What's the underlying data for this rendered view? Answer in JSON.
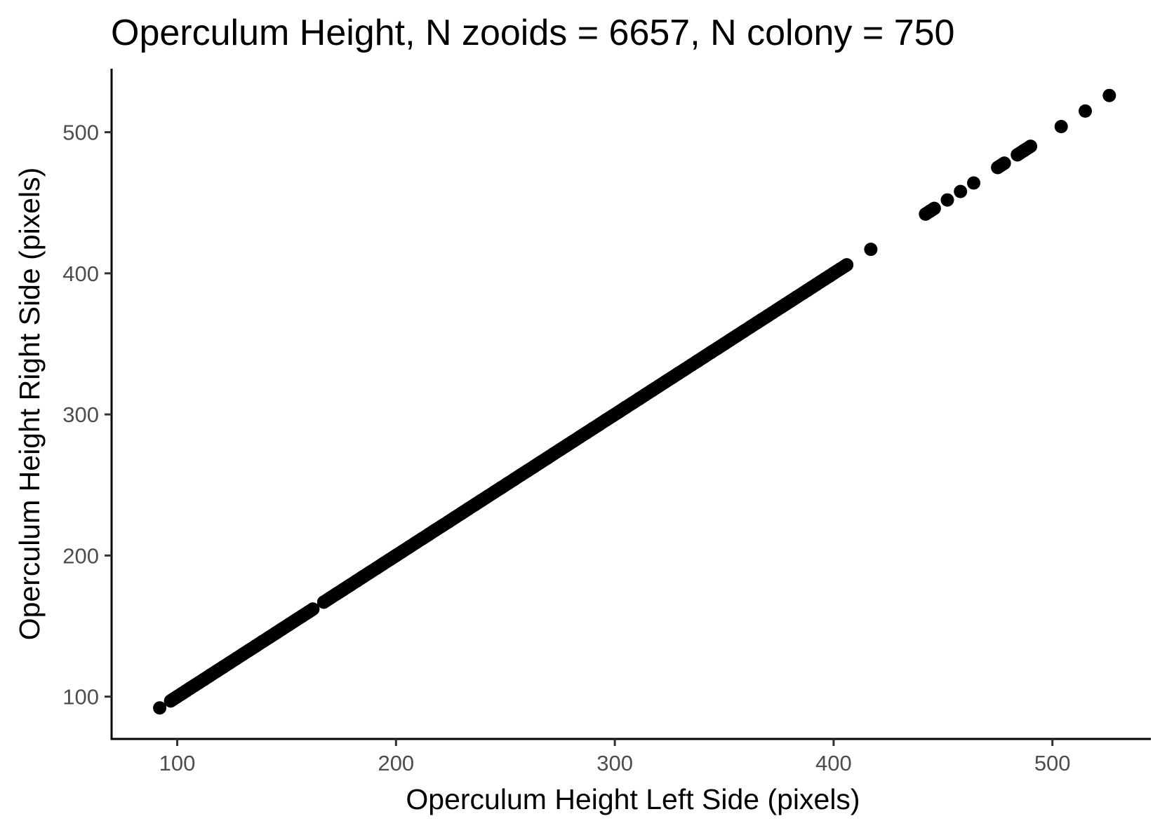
{
  "chart_data": {
    "type": "scatter",
    "title": "Operculum Height, N zooids = 6657, N colony = 750",
    "xlabel": "Operculum Height Left Side (pixels)",
    "ylabel": "Operculum Height Right Side (pixels)",
    "xlim": [
      70,
      545
    ],
    "ylim": [
      70,
      545
    ],
    "xticks": [
      100,
      200,
      300,
      400,
      500
    ],
    "yticks": [
      100,
      200,
      300,
      400,
      500
    ],
    "xtick_labels": [
      "100",
      "200",
      "300",
      "400",
      "500"
    ],
    "ytick_labels": [
      "100",
      "200",
      "300",
      "400",
      "500"
    ],
    "grid": false,
    "legend": "none",
    "point_color": "#000000",
    "series": [
      {
        "points": [
          [
            92,
            92
          ],
          [
            97,
            97
          ],
          [
            98,
            98
          ],
          [
            100,
            100
          ],
          [
            102,
            102
          ],
          [
            104,
            104
          ],
          [
            106,
            106
          ],
          [
            108,
            108
          ],
          [
            110,
            110
          ],
          [
            112,
            112
          ],
          [
            115,
            115
          ],
          [
            118,
            118
          ],
          [
            121,
            121
          ],
          [
            124,
            124
          ],
          [
            127,
            127
          ],
          [
            130,
            130
          ],
          [
            133,
            133
          ],
          [
            136,
            136
          ],
          [
            139,
            139
          ],
          [
            142,
            142
          ],
          [
            145,
            145
          ],
          [
            148,
            148
          ],
          [
            151,
            151
          ],
          [
            154,
            154
          ],
          [
            157,
            157
          ],
          [
            160,
            160
          ],
          [
            162,
            162
          ],
          [
            167,
            167
          ],
          [
            170,
            170
          ],
          [
            173,
            173
          ],
          [
            176,
            176
          ],
          [
            179,
            179
          ],
          [
            182,
            182
          ],
          [
            185,
            185
          ],
          [
            188,
            188
          ],
          [
            191,
            191
          ],
          [
            194,
            194
          ],
          [
            197,
            197
          ],
          [
            200,
            200
          ],
          [
            203,
            203
          ],
          [
            206,
            206
          ],
          [
            209,
            209
          ],
          [
            212,
            212
          ],
          [
            215,
            215
          ],
          [
            218,
            218
          ],
          [
            221,
            221
          ],
          [
            224,
            224
          ],
          [
            227,
            227
          ],
          [
            230,
            230
          ],
          [
            233,
            233
          ],
          [
            236,
            236
          ],
          [
            239,
            239
          ],
          [
            242,
            242
          ],
          [
            245,
            245
          ],
          [
            248,
            248
          ],
          [
            251,
            251
          ],
          [
            254,
            254
          ],
          [
            257,
            257
          ],
          [
            260,
            260
          ],
          [
            263,
            263
          ],
          [
            266,
            266
          ],
          [
            269,
            269
          ],
          [
            272,
            272
          ],
          [
            275,
            275
          ],
          [
            278,
            278
          ],
          [
            281,
            281
          ],
          [
            284,
            284
          ],
          [
            287,
            287
          ],
          [
            290,
            290
          ],
          [
            293,
            293
          ],
          [
            296,
            296
          ],
          [
            299,
            299
          ],
          [
            302,
            302
          ],
          [
            305,
            305
          ],
          [
            308,
            308
          ],
          [
            311,
            311
          ],
          [
            314,
            314
          ],
          [
            317,
            317
          ],
          [
            320,
            320
          ],
          [
            323,
            323
          ],
          [
            326,
            326
          ],
          [
            329,
            329
          ],
          [
            332,
            332
          ],
          [
            335,
            335
          ],
          [
            338,
            338
          ],
          [
            341,
            341
          ],
          [
            344,
            344
          ],
          [
            347,
            347
          ],
          [
            350,
            350
          ],
          [
            353,
            353
          ],
          [
            356,
            356
          ],
          [
            359,
            359
          ],
          [
            362,
            362
          ],
          [
            365,
            365
          ],
          [
            367,
            367
          ],
          [
            370,
            370
          ],
          [
            372,
            372
          ],
          [
            374,
            374
          ],
          [
            376,
            376
          ],
          [
            378,
            378
          ],
          [
            380,
            380
          ],
          [
            383,
            383
          ],
          [
            386,
            386
          ],
          [
            388,
            388
          ],
          [
            390,
            390
          ],
          [
            392,
            392
          ],
          [
            394,
            394
          ],
          [
            396,
            396
          ],
          [
            398,
            398
          ],
          [
            400,
            400
          ],
          [
            403,
            403
          ],
          [
            405,
            405
          ],
          [
            406,
            406
          ],
          [
            417,
            417
          ],
          [
            442,
            442
          ],
          [
            444,
            444
          ],
          [
            446,
            446
          ],
          [
            452,
            452
          ],
          [
            458,
            458
          ],
          [
            464,
            464
          ],
          [
            475,
            475
          ],
          [
            478,
            478
          ],
          [
            484,
            484
          ],
          [
            487,
            487
          ],
          [
            490,
            490
          ],
          [
            504,
            504
          ],
          [
            515,
            515
          ],
          [
            526,
            526
          ]
        ]
      }
    ]
  }
}
